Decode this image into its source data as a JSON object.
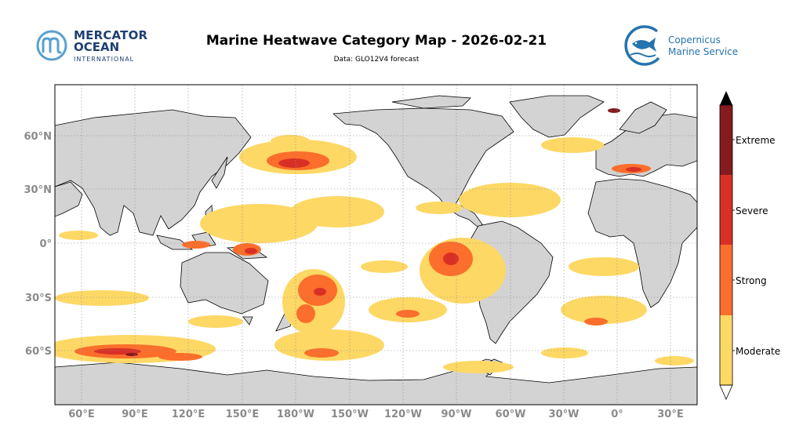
{
  "header": {
    "title": "Marine Heatwave Category Map - 2026-02-21",
    "subtitle": "Data: GLO12V4 forecast"
  },
  "logo_left": {
    "line1": "MERCATOR",
    "line2": "OCEAN",
    "line3": "INTERNATIONAL",
    "color": "#1f3f73"
  },
  "logo_right": {
    "line1": "Copernicus",
    "line2": "Marine Service",
    "color": "#2673ad"
  },
  "map": {
    "projection": "PlateCarree",
    "central_longitude": -130,
    "lat_labels": [
      "60°N",
      "30°N",
      "0°",
      "30°S",
      "60°S"
    ],
    "lon_labels": [
      "60°E",
      "90°E",
      "120°E",
      "150°E",
      "180°W",
      "150°W",
      "120°W",
      "90°W",
      "60°W",
      "30°W",
      "0°",
      "30°E"
    ],
    "land_color": "#d3d3d3",
    "ocean_color": "#ffffff"
  },
  "colorbar": {
    "categories": [
      "Moderate",
      "Strong",
      "Severe",
      "Extreme"
    ],
    "colors": [
      "#fdd865",
      "#fb6e2b",
      "#d93026",
      "#851b1e"
    ]
  }
}
